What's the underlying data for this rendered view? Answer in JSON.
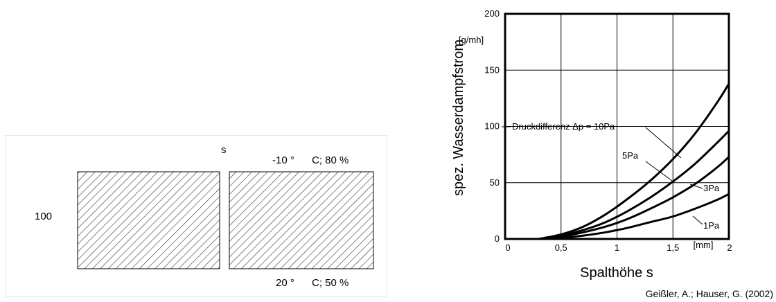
{
  "figure": {
    "gap_label": "s",
    "dimension_label": "100",
    "top_condition": {
      "temperature": "-10 °",
      "rest": "C; 80 %"
    },
    "bottom_condition": {
      "temperature": "20 °",
      "rest": "C; 50 %"
    }
  },
  "citation": "Geißler, A.; Hauser, G. (2002)",
  "chart_data": {
    "type": "line",
    "title": "",
    "xlabel": "Spalthöhe s",
    "x_unit": "[mm]",
    "ylabel": "spez. Wasserdampfstrom",
    "y_unit": "[g/mh]",
    "xlim": [
      0,
      2
    ],
    "ylim": [
      0,
      200
    ],
    "grid": true,
    "x_ticks": [
      {
        "value": 0,
        "label": "0"
      },
      {
        "value": 0.5,
        "label": "0,5"
      },
      {
        "value": 1,
        "label": "1"
      },
      {
        "value": 1.5,
        "label": "1,5"
      },
      {
        "value": 2,
        "label": "2"
      }
    ],
    "y_ticks": [
      {
        "value": 0,
        "label": "0"
      },
      {
        "value": 50,
        "label": "50"
      },
      {
        "value": 100,
        "label": "100"
      },
      {
        "value": 150,
        "label": "150"
      },
      {
        "value": 200,
        "label": "200"
      }
    ],
    "series_prefix": "Druckdifferenz Δp = ",
    "series": [
      {
        "name": "10Pa",
        "x": [
          0.3,
          0.5,
          0.7,
          0.9,
          1.1,
          1.3,
          1.5,
          1.7,
          1.9,
          2.0
        ],
        "y": [
          0,
          4,
          11,
          22,
          36,
          52,
          71,
          94,
          122,
          138
        ]
      },
      {
        "name": "5Pa",
        "x": [
          0.3,
          0.5,
          0.7,
          0.9,
          1.1,
          1.3,
          1.5,
          1.7,
          1.9,
          2.0
        ],
        "y": [
          0,
          3,
          8,
          15,
          25,
          37,
          51,
          67,
          86,
          96
        ]
      },
      {
        "name": "3Pa",
        "x": [
          0.3,
          0.5,
          0.7,
          0.9,
          1.1,
          1.3,
          1.5,
          1.7,
          1.9,
          2.0
        ],
        "y": [
          0,
          2,
          6,
          11,
          18,
          27,
          37,
          49,
          64,
          73
        ]
      },
      {
        "name": "1Pa",
        "x": [
          0.3,
          0.5,
          0.7,
          0.9,
          1.1,
          1.3,
          1.5,
          1.7,
          1.9,
          2.0
        ],
        "y": [
          0,
          1,
          3,
          6,
          10,
          15,
          20,
          27,
          35,
          40
        ]
      }
    ]
  }
}
